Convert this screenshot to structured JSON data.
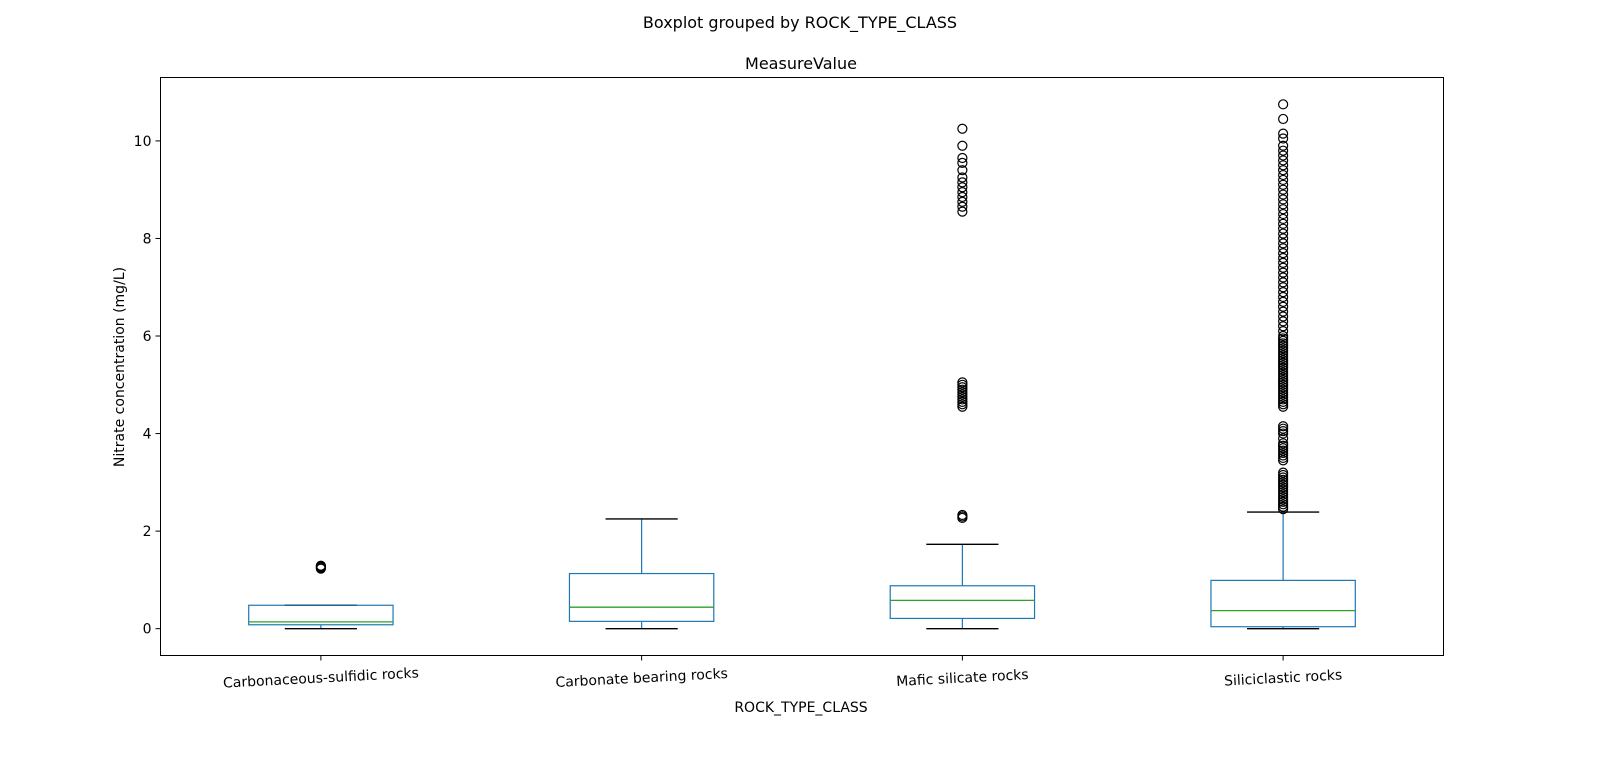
{
  "chart_data": {
    "type": "box",
    "suptitle": "Boxplot grouped by ROCK_TYPE_CLASS",
    "title": "MeasureValue",
    "xlabel": "ROCK_TYPE_CLASS",
    "ylabel": "Nitrate concentration (mg/L)",
    "ylim": [
      -0.55,
      11.3
    ],
    "yticks": [
      0,
      2,
      4,
      6,
      8,
      10
    ],
    "grid": false,
    "colors": {
      "box": "#1f77b4",
      "median": "#2ca02c",
      "whisker": "#1f77b4",
      "cap": "#000000",
      "flier": "#000000"
    },
    "categories": [
      "Carbonaceous-sulfidic rocks",
      "Carbonate bearing rocks",
      "Mafic silicate rocks",
      "Siliciclastic rocks"
    ],
    "boxes": [
      {
        "category": "Carbonaceous-sulfidic rocks",
        "whislo": 0.0,
        "q1": 0.08,
        "med": 0.14,
        "q3": 0.48,
        "whishi": 0.48,
        "fliers": [
          1.23,
          1.25,
          1.27,
          1.29
        ]
      },
      {
        "category": "Carbonate bearing rocks",
        "whislo": 0.0,
        "q1": 0.15,
        "med": 0.44,
        "q3": 1.13,
        "whishi": 2.25,
        "fliers": []
      },
      {
        "category": "Mafic silicate rocks",
        "whislo": 0.0,
        "q1": 0.21,
        "med": 0.58,
        "q3": 0.88,
        "whishi": 1.73,
        "fliers": [
          2.27,
          2.3,
          2.33,
          4.55,
          4.6,
          4.65,
          4.7,
          4.75,
          4.8,
          4.85,
          4.9,
          4.95,
          5.0,
          5.05,
          8.55,
          8.65,
          8.75,
          8.85,
          8.95,
          9.05,
          9.15,
          9.25,
          9.4,
          9.55,
          9.65,
          9.9,
          10.25
        ]
      },
      {
        "category": "Siliciclastic rocks",
        "whislo": 0.0,
        "q1": 0.04,
        "med": 0.37,
        "q3": 0.99,
        "whishi": 2.39,
        "fliers": [
          2.45,
          2.5,
          2.55,
          2.6,
          2.65,
          2.7,
          2.75,
          2.8,
          2.85,
          2.9,
          2.95,
          3.0,
          3.05,
          3.1,
          3.15,
          3.2,
          3.45,
          3.5,
          3.55,
          3.6,
          3.65,
          3.7,
          3.75,
          3.8,
          3.9,
          4.0,
          4.05,
          4.1,
          4.15,
          4.55,
          4.6,
          4.65,
          4.7,
          4.75,
          4.8,
          4.85,
          4.9,
          4.95,
          5.0,
          5.05,
          5.1,
          5.15,
          5.2,
          5.25,
          5.3,
          5.35,
          5.4,
          5.45,
          5.5,
          5.55,
          5.6,
          5.65,
          5.7,
          5.75,
          5.8,
          5.85,
          5.9,
          5.95,
          6.0,
          6.1,
          6.2,
          6.3,
          6.4,
          6.5,
          6.6,
          6.7,
          6.8,
          6.9,
          7.0,
          7.1,
          7.2,
          7.3,
          7.4,
          7.5,
          7.6,
          7.7,
          7.8,
          7.9,
          8.0,
          8.1,
          8.2,
          8.3,
          8.4,
          8.5,
          8.6,
          8.7,
          8.8,
          8.9,
          9.0,
          9.1,
          9.2,
          9.3,
          9.4,
          9.5,
          9.6,
          9.7,
          9.8,
          9.9,
          10.05,
          10.15,
          10.45,
          10.75
        ]
      }
    ]
  }
}
